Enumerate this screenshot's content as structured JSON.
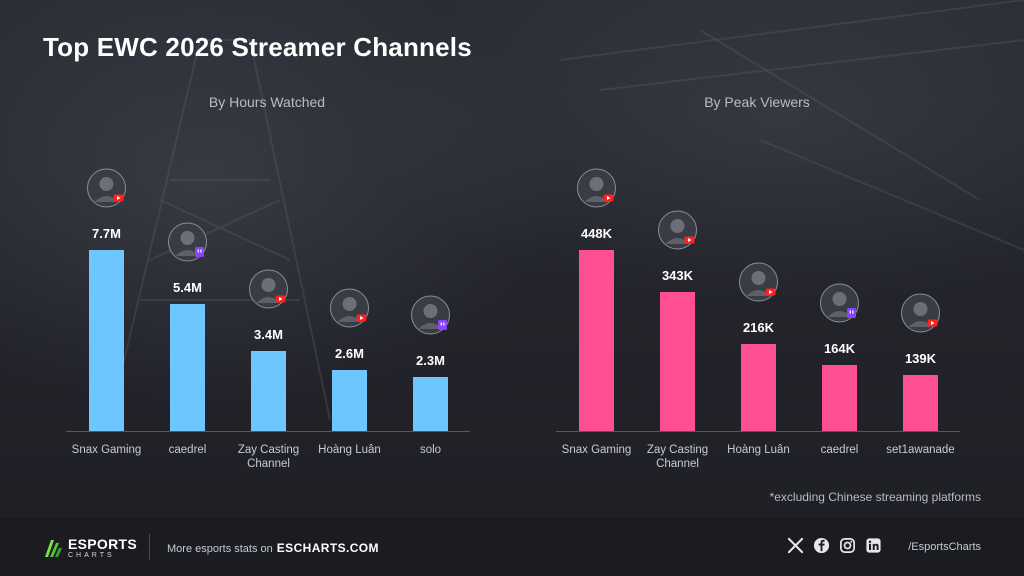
{
  "title": "Top EWC 2026 Streamer Channels",
  "footnote": "*excluding Chinese streaming platforms",
  "colors": {
    "left_bar": "#6ec6ff",
    "right_bar": "#ff4f93",
    "text": "#ffffff",
    "muted": "#b9bcc6"
  },
  "chart_data": [
    {
      "type": "bar",
      "title": "By Hours Watched",
      "categories": [
        "Snax Gaming",
        "caedrel",
        "Zay Casting Channel",
        "Hoàng Luân",
        "solo"
      ],
      "values": [
        7.7,
        5.4,
        3.4,
        2.6,
        2.3
      ],
      "value_labels": [
        "7.7M",
        "5.4M",
        "3.4M",
        "2.6M",
        "2.3M"
      ],
      "platforms": [
        "youtube",
        "twitch",
        "youtube",
        "youtube",
        "twitch"
      ],
      "unit": "M",
      "ylim": [
        0,
        7.7
      ],
      "grid": false
    },
    {
      "type": "bar",
      "title": "By Peak Viewers",
      "categories": [
        "Snax Gaming",
        "Zay Casting Channel",
        "Hoàng Luân",
        "caedrel",
        "set1awanade"
      ],
      "values": [
        448,
        343,
        216,
        164,
        139
      ],
      "value_labels": [
        "448K",
        "343K",
        "216K",
        "164K",
        "139K"
      ],
      "platforms": [
        "youtube",
        "youtube",
        "youtube",
        "twitch",
        "youtube"
      ],
      "unit": "K",
      "ylim": [
        0,
        448
      ],
      "grid": false
    }
  ],
  "footer": {
    "logo_main": "ESPORTS",
    "logo_sub": "CHARTS",
    "more_text": "More esports stats on",
    "more_link": "ESCHARTS.COM",
    "handle": "/EsportsCharts",
    "social_icons": [
      "x-icon",
      "facebook-icon",
      "instagram-icon",
      "linkedin-icon"
    ]
  }
}
